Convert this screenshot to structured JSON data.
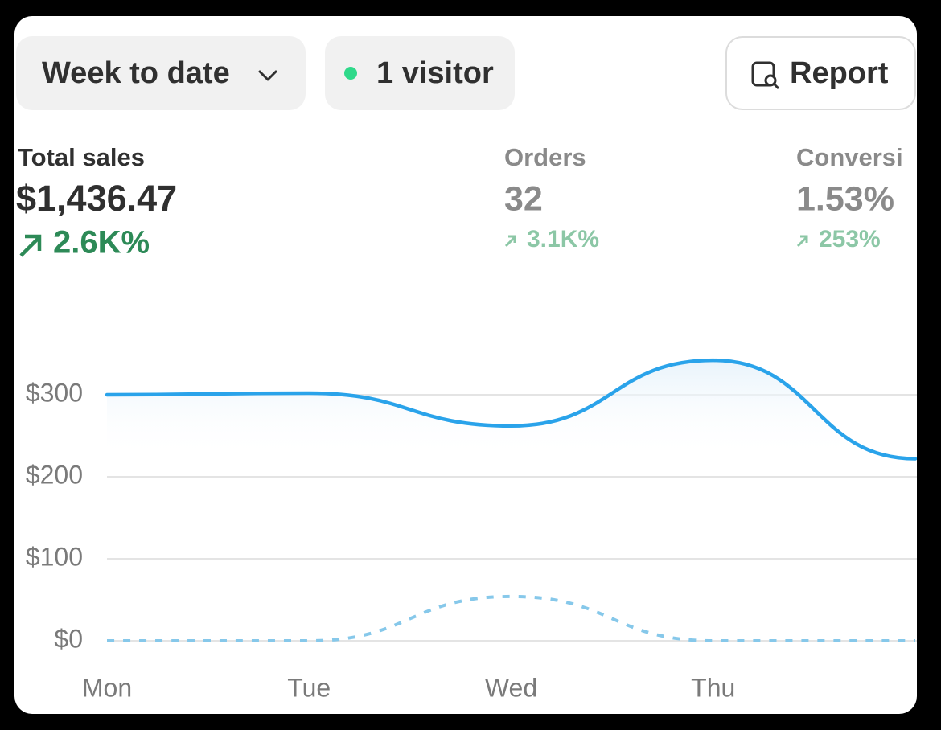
{
  "toolbar": {
    "period": "Week to date",
    "visitors": "1 visitor",
    "report": "Report"
  },
  "metrics": [
    {
      "label": "Total sales",
      "value": "$1,436.47",
      "change": "2.6K%"
    },
    {
      "label": "Orders",
      "value": "32",
      "change": "3.1K%"
    },
    {
      "label": "Conversi",
      "value": "1.53%",
      "change": "253%"
    }
  ],
  "chart_data": {
    "type": "line",
    "categories": [
      "Mon",
      "Tue",
      "Wed",
      "Thu",
      null
    ],
    "series": [
      {
        "color": "#2aa3ea",
        "values": [
          300,
          302,
          262,
          342,
          222
        ],
        "area": true
      },
      {
        "color": "#86c8ea",
        "values": [
          0,
          0,
          54,
          0,
          0
        ],
        "dashed": true
      }
    ],
    "ylim": [
      0,
      350
    ],
    "yticks": [
      {
        "value": 0,
        "label": "$0"
      },
      {
        "value": 100,
        "label": "$100"
      },
      {
        "value": 200,
        "label": "$200"
      },
      {
        "value": 300,
        "label": "$300"
      }
    ],
    "grid": true
  }
}
